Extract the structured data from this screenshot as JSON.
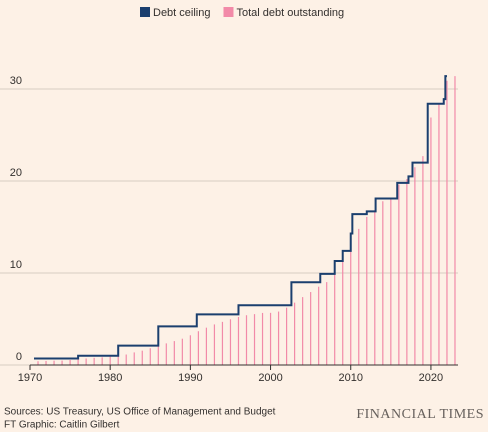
{
  "chart_data": {
    "type": "line",
    "series": [
      {
        "name": "Debt ceiling",
        "color": "#1b3f6e",
        "step": true,
        "x": [
          1970.5,
          1976,
          1981,
          1986,
          1990.8,
          1996,
          2002.6,
          2006.2,
          2008,
          2009,
          2010,
          2010.2,
          2012,
          2013.1,
          2015.8,
          2017.2,
          2017.7,
          2019.6,
          2021.6,
          2021.8,
          2022
        ],
        "values": [
          0.7,
          1.0,
          2.1,
          4.2,
          5.5,
          6.5,
          9.0,
          9.9,
          11.3,
          12.4,
          14.3,
          16.4,
          16.7,
          18.1,
          19.8,
          20.5,
          22.0,
          28.4,
          28.9,
          31.4,
          31.4
        ]
      },
      {
        "name": "Total debt outstanding",
        "color": "#f28aa8",
        "type": "bar",
        "x": [
          1971,
          1972,
          1973,
          1974,
          1975,
          1976,
          1977,
          1978,
          1979,
          1980,
          1981,
          1982,
          1983,
          1984,
          1985,
          1986,
          1987,
          1988,
          1989,
          1990,
          1991,
          1992,
          1993,
          1994,
          1995,
          1996,
          1997,
          1998,
          1999,
          2000,
          2001,
          2002,
          2003,
          2004,
          2005,
          2006,
          2007,
          2008,
          2009,
          2010,
          2011,
          2012,
          2013,
          2014,
          2015,
          2016,
          2017,
          2018,
          2019,
          2020,
          2021,
          2022,
          2023
        ],
        "values": [
          0.41,
          0.44,
          0.47,
          0.48,
          0.54,
          0.63,
          0.71,
          0.78,
          0.83,
          0.91,
          1.0,
          1.14,
          1.37,
          1.56,
          1.82,
          2.13,
          2.35,
          2.6,
          2.86,
          3.23,
          3.67,
          4.06,
          4.41,
          4.69,
          4.97,
          5.22,
          5.41,
          5.53,
          5.66,
          5.67,
          5.81,
          6.23,
          6.78,
          7.38,
          7.93,
          8.51,
          9.01,
          10.0,
          11.9,
          13.6,
          14.8,
          16.1,
          16.7,
          17.8,
          18.2,
          19.6,
          20.2,
          21.5,
          22.7,
          26.9,
          28.4,
          30.9,
          31.4
        ]
      }
    ],
    "xlim": [
      1970,
      2024
    ],
    "xticks": [
      1970,
      1980,
      1990,
      2000,
      2010,
      2020
    ],
    "ylim": [
      0,
      35
    ],
    "yticks": [
      0,
      10,
      20,
      30
    ],
    "grid": true
  },
  "source": "Sources: US Treasury, US Office of Management and Budget",
  "credit": "FT Graphic: Caitlin Gilbert",
  "brand": "FINANCIAL TIMES"
}
